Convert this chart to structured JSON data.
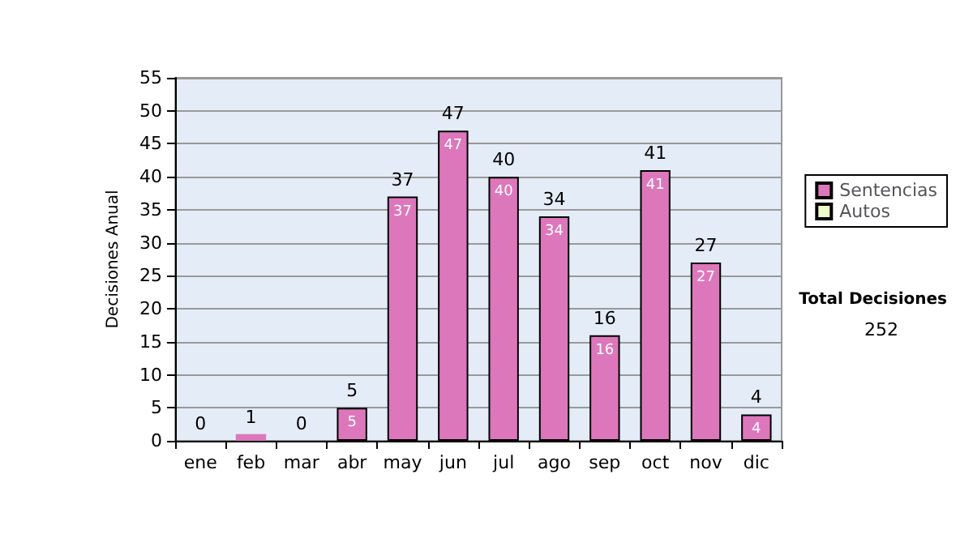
{
  "chart_data": {
    "type": "bar",
    "ylabel": "Decisiones Anual",
    "categories": [
      "ene",
      "feb",
      "mar",
      "abr",
      "may",
      "jun",
      "jul",
      "ago",
      "sep",
      "oct",
      "nov",
      "dic"
    ],
    "series": [
      {
        "name": "Sentencias",
        "color": "#dd77bb",
        "values": [
          0,
          1,
          0,
          5,
          37,
          47,
          40,
          34,
          16,
          41,
          27,
          4
        ],
        "value_labels": [
          null,
          null,
          null,
          "5",
          "37",
          "47",
          "40",
          "34",
          "16",
          "41",
          "27",
          "4"
        ]
      },
      {
        "name": "Autos",
        "color": "#eeffcc",
        "values": [
          0,
          0,
          0,
          0,
          0,
          0,
          0,
          0,
          0,
          0,
          0,
          0
        ]
      }
    ],
    "stacked": true,
    "totals": [
      "0",
      "1",
      "0",
      "5",
      "37",
      "47",
      "40",
      "34",
      "16",
      "41",
      "27",
      "4"
    ],
    "ylim": [
      0,
      55
    ],
    "yticks": [
      0,
      5,
      10,
      15,
      20,
      25,
      30,
      35,
      40,
      45,
      50,
      55
    ],
    "grid": "y",
    "legend": "right",
    "annotations": [
      "Total Decisiones",
      "252"
    ]
  }
}
